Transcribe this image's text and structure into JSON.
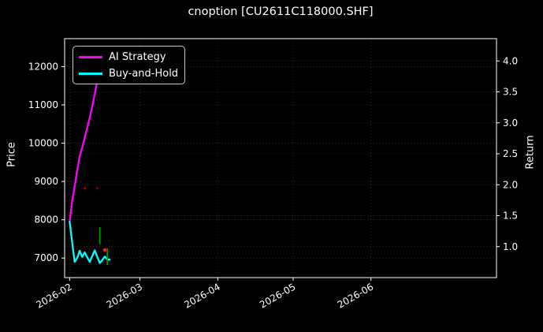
{
  "title": "cnoption [CU2611C118000.SHF]",
  "legend": {
    "items": [
      {
        "label": "AI Strategy",
        "color": "#ff00ff"
      },
      {
        "label": "Buy-and-Hold",
        "color": "#00ffff"
      }
    ]
  },
  "chart_data": {
    "type": "line",
    "title": "cnoption [CU2611C118000.SHF]",
    "grid": "dotted",
    "legend_position": "upper-left",
    "style": {
      "background": "#000000",
      "foreground": "#ffffff",
      "grid_color": "#3c3c3c"
    },
    "x_axis": {
      "type": "date",
      "min": "2026-01-30",
      "max": "2026-07-21",
      "tick_dates": [
        "2026-02-01",
        "2026-03-01",
        "2026-04-01",
        "2026-05-01",
        "2026-06-01"
      ],
      "tick_labels": [
        "2026-02",
        "2026-03",
        "2026-04",
        "2026-05",
        "2026-06"
      ],
      "tick_rotation_deg": 30
    },
    "y_axis_left": {
      "label": "Price",
      "min": 6490,
      "max": 12730,
      "ticks": [
        7000,
        8000,
        9000,
        10000,
        11000,
        12000
      ]
    },
    "y_axis_right": {
      "label": "Return",
      "min": 0.5,
      "max": 4.36,
      "ticks": [
        1.0,
        1.5,
        2.0,
        2.5,
        3.0,
        3.5,
        4.0
      ]
    },
    "series": [
      {
        "name": "AI Strategy",
        "color": "#ff00ff",
        "axis": "left",
        "points": [
          [
            "2026-02-01",
            7950
          ],
          [
            "2026-02-02",
            8500
          ],
          [
            "2026-02-03",
            8870
          ],
          [
            "2026-02-04",
            9290
          ],
          [
            "2026-02-05",
            9660
          ],
          [
            "2026-02-06",
            9890
          ],
          [
            "2026-02-07",
            10150
          ],
          [
            "2026-02-08",
            10400
          ],
          [
            "2026-02-09",
            10670
          ],
          [
            "2026-02-10",
            10960
          ],
          [
            "2026-02-11",
            11280
          ],
          [
            "2026-02-12",
            11620
          ],
          [
            "2026-02-13",
            12360
          ],
          [
            "2026-02-14",
            11980
          ],
          [
            "2026-02-15",
            12100
          ],
          [
            "2026-02-16",
            12290
          ]
        ]
      },
      {
        "name": "Buy-and-Hold",
        "color": "#00ffff",
        "axis": "left",
        "points": [
          [
            "2026-02-01",
            7950
          ],
          [
            "2026-02-02",
            7400
          ],
          [
            "2026-02-03",
            6900
          ],
          [
            "2026-02-04",
            7000
          ],
          [
            "2026-02-05",
            7190
          ],
          [
            "2026-02-06",
            7030
          ],
          [
            "2026-02-07",
            7150
          ],
          [
            "2026-02-08",
            7020
          ],
          [
            "2026-02-09",
            6900
          ],
          [
            "2026-02-10",
            7050
          ],
          [
            "2026-02-11",
            7200
          ],
          [
            "2026-02-12",
            7030
          ],
          [
            "2026-02-13",
            6870
          ],
          [
            "2026-02-14",
            6950
          ],
          [
            "2026-02-15",
            7040
          ],
          [
            "2026-02-16",
            6960
          ],
          [
            "2026-02-17",
            6960
          ]
        ]
      }
    ],
    "markers": [
      {
        "shape": "dot",
        "name": "trade-marker-darkred",
        "color": "#8b0000",
        "date": "2026-02-07",
        "price": 8820,
        "size": 1.6
      },
      {
        "shape": "dot",
        "name": "trade-marker-darkred",
        "color": "#8b0000",
        "date": "2026-02-12",
        "price": 8820,
        "size": 1.6
      },
      {
        "shape": "vline",
        "name": "trade-marker-green",
        "color": "#00a000",
        "date": "2026-02-13",
        "price_from": 7360,
        "price_to": 7810,
        "size": 1.6
      },
      {
        "shape": "dot",
        "name": "trade-marker-red",
        "color": "#ff1a1a",
        "date": "2026-02-15",
        "price": 7210,
        "size": 2.3
      },
      {
        "shape": "vline",
        "name": "trade-marker-green",
        "color": "#00a000",
        "date": "2026-02-16",
        "price_from": 6820,
        "price_to": 7250,
        "size": 1.6
      }
    ]
  }
}
